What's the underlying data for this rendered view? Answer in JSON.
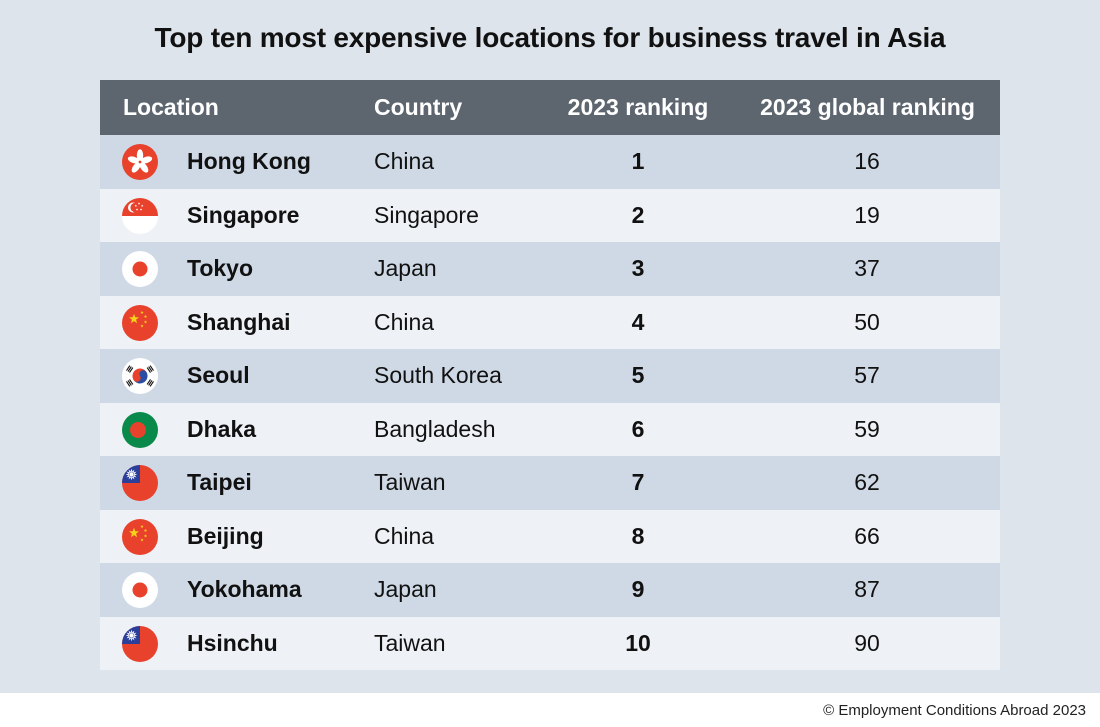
{
  "title": "Top ten most expensive locations for business travel in Asia",
  "footer": "© Employment Conditions Abroad 2023",
  "colors": {
    "header_bg": "#5d666f",
    "row_odd": "#cfd9e5",
    "row_even": "#eef1f5",
    "panel_bg": "#dde4ec",
    "flag_red": "#e8412c"
  },
  "chart_data": {
    "type": "table",
    "title": "Top ten most expensive locations for business travel in Asia",
    "columns": [
      "Location",
      "Country",
      "2023 ranking",
      "2023 global ranking"
    ],
    "rows": [
      {
        "location": "Hong Kong",
        "country": "China",
        "rank": "1",
        "global_rank": "16",
        "flag": "hong-kong-flag-icon"
      },
      {
        "location": "Singapore",
        "country": "Singapore",
        "rank": "2",
        "global_rank": "19",
        "flag": "singapore-flag-icon"
      },
      {
        "location": "Tokyo",
        "country": "Japan",
        "rank": "3",
        "global_rank": "37",
        "flag": "japan-flag-icon"
      },
      {
        "location": "Shanghai",
        "country": "China",
        "rank": "4",
        "global_rank": "50",
        "flag": "china-flag-icon"
      },
      {
        "location": "Seoul",
        "country": "South Korea",
        "rank": "5",
        "global_rank": "57",
        "flag": "south-korea-flag-icon"
      },
      {
        "location": "Dhaka",
        "country": "Bangladesh",
        "rank": "6",
        "global_rank": "59",
        "flag": "bangladesh-flag-icon"
      },
      {
        "location": "Taipei",
        "country": "Taiwan",
        "rank": "7",
        "global_rank": "62",
        "flag": "taiwan-flag-icon"
      },
      {
        "location": "Beijing",
        "country": "China",
        "rank": "8",
        "global_rank": "66",
        "flag": "china-flag-icon"
      },
      {
        "location": "Yokohama",
        "country": "Japan",
        "rank": "9",
        "global_rank": "87",
        "flag": "japan-flag-icon"
      },
      {
        "location": "Hsinchu",
        "country": "Taiwan",
        "rank": "10",
        "global_rank": "90",
        "flag": "taiwan-flag-icon"
      }
    ]
  }
}
